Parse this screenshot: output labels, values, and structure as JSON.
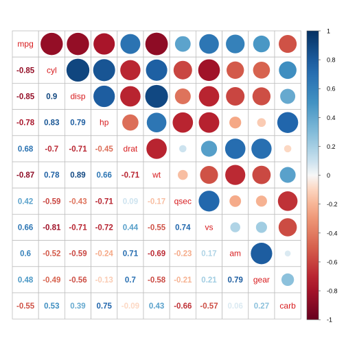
{
  "chart_data": {
    "type": "heatmap",
    "title": "",
    "variables": [
      "mpg",
      "cyl",
      "disp",
      "hp",
      "drat",
      "wt",
      "qsec",
      "vs",
      "am",
      "gear",
      "carb"
    ],
    "matrix": [
      [
        1.0,
        -0.85,
        -0.85,
        -0.78,
        0.68,
        -0.87,
        0.42,
        0.66,
        0.6,
        0.48,
        -0.55
      ],
      [
        -0.85,
        1.0,
        0.9,
        0.83,
        -0.7,
        0.78,
        -0.59,
        -0.81,
        -0.52,
        -0.49,
        0.53
      ],
      [
        -0.85,
        0.9,
        1.0,
        0.79,
        -0.71,
        0.89,
        -0.43,
        -0.71,
        -0.59,
        -0.56,
        0.39
      ],
      [
        -0.78,
        0.83,
        0.79,
        1.0,
        -0.45,
        0.66,
        -0.71,
        -0.72,
        -0.24,
        -0.13,
        0.75
      ],
      [
        0.68,
        -0.7,
        -0.71,
        -0.45,
        1.0,
        -0.71,
        0.09,
        0.44,
        0.71,
        0.7,
        -0.09
      ],
      [
        -0.87,
        0.78,
        0.89,
        0.66,
        -0.71,
        1.0,
        -0.17,
        -0.55,
        -0.69,
        -0.58,
        0.43
      ],
      [
        0.42,
        -0.59,
        -0.43,
        -0.71,
        0.09,
        -0.17,
        1.0,
        0.74,
        -0.23,
        -0.21,
        -0.66
      ],
      [
        0.66,
        -0.81,
        -0.71,
        -0.72,
        0.44,
        -0.55,
        0.74,
        1.0,
        0.17,
        0.21,
        -0.57
      ],
      [
        0.6,
        -0.52,
        -0.59,
        -0.24,
        0.71,
        -0.69,
        -0.23,
        0.17,
        1.0,
        0.79,
        0.06
      ],
      [
        0.48,
        -0.49,
        -0.56,
        -0.13,
        0.7,
        -0.58,
        -0.21,
        0.21,
        0.79,
        1.0,
        0.27
      ],
      [
        -0.55,
        0.53,
        0.39,
        0.75,
        -0.09,
        0.43,
        -0.66,
        -0.57,
        0.06,
        0.27,
        1.0
      ]
    ],
    "lower_labels": [
      [],
      [
        "-0.85"
      ],
      [
        "-0.85",
        "0.9"
      ],
      [
        "-0.78",
        "0.83",
        "0.79"
      ],
      [
        "0.68",
        "-0.7",
        "-0.71",
        "-0.45"
      ],
      [
        "-0.87",
        "0.78",
        "0.89",
        "0.66",
        "-0.71"
      ],
      [
        "0.42",
        "-0.59",
        "-0.43",
        "-0.71",
        "0.09",
        "-0.17"
      ],
      [
        "0.66",
        "-0.81",
        "-0.71",
        "-0.72",
        "0.44",
        "-0.55",
        "0.74"
      ],
      [
        "0.6",
        "-0.52",
        "-0.59",
        "-0.24",
        "0.71",
        "-0.69",
        "-0.23",
        "0.17"
      ],
      [
        "0.48",
        "-0.49",
        "-0.56",
        "-0.13",
        "0.7",
        "-0.58",
        "-0.21",
        "0.21",
        "0.79"
      ],
      [
        "-0.55",
        "0.53",
        "0.39",
        "0.75",
        "-0.09",
        "0.43",
        "-0.66",
        "-0.57",
        "0.06",
        "0.27"
      ]
    ],
    "upper": "circle",
    "lower": "number",
    "diagonal": "variable name",
    "value_range": [
      -1,
      1
    ],
    "colorbar": {
      "ticks": [
        "1",
        "0.8",
        "0.6",
        "0.4",
        "0.2",
        "0",
        "-0.2",
        "-0.4",
        "-0.6",
        "-0.8",
        "-1"
      ],
      "placement": "right"
    },
    "colors": {
      "negative_strong": "#67001f",
      "neutral": "#f7f7f7",
      "positive_strong": "#053061",
      "label_text": "#d7191c",
      "grid": "#bebebe"
    }
  }
}
